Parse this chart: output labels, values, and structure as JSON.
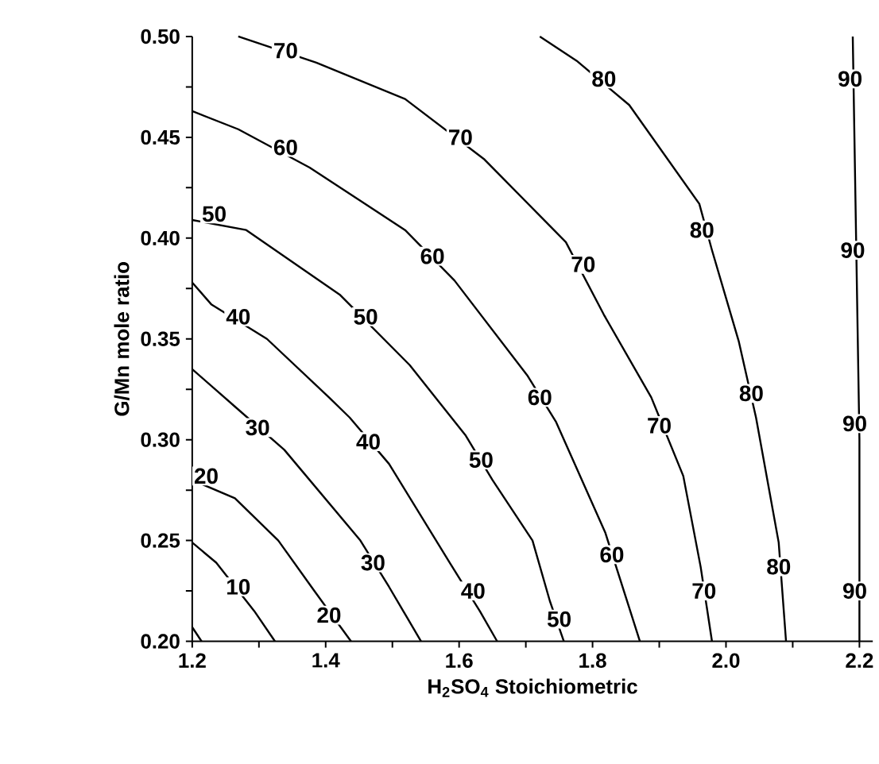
{
  "chart_data": {
    "type": "line",
    "xlabel": "H$_{2}$SO$_{4}$ Stoichiometric",
    "ylabel": "G/Mn mole ratio",
    "xlim": [
      1.2,
      2.22
    ],
    "ylim": [
      0.2,
      0.5
    ],
    "xticks": [
      1.2,
      {
        "value": 1.3,
        "label": null
      },
      1.4,
      {
        "value": 1.5,
        "label": null
      },
      1.6,
      {
        "value": 1.7,
        "label": null
      },
      1.8,
      {
        "value": 1.9,
        "label": null
      },
      {
        "value": 2.0,
        "label": "2.0"
      },
      {
        "value": 2.1,
        "label": null
      },
      2.2
    ],
    "yticks": [
      {
        "value": 0.2,
        "label": "0.20"
      },
      {
        "value": 0.225,
        "label": null
      },
      0.25,
      {
        "value": 0.275,
        "label": null
      },
      {
        "value": 0.3,
        "label": "0.30"
      },
      {
        "value": 0.325,
        "label": null
      },
      0.35,
      {
        "value": 0.375,
        "label": null
      },
      {
        "value": 0.4,
        "label": "0.40"
      },
      {
        "value": 0.425,
        "label": null
      },
      0.45,
      {
        "value": 0.475,
        "label": null
      },
      {
        "value": 0.5,
        "label": "0.50"
      }
    ],
    "series": [
      {
        "color": "#000000",
        "x": [
          2.19,
          2.195,
          2.2,
          2.2
        ],
        "values": [
          0.5,
          0.4,
          0.3,
          0.2
        ]
      },
      {
        "color": "#000000",
        "x": [
          1.721,
          1.776,
          1.855,
          1.96,
          1.979,
          2.019,
          2.045,
          2.079,
          2.09
        ],
        "values": [
          0.5,
          0.488,
          0.466,
          0.417,
          0.394,
          0.349,
          0.311,
          0.249,
          0.2
        ]
      },
      {
        "color": "#000000",
        "x": [
          1.269,
          1.386,
          1.519,
          1.638,
          1.76,
          1.817,
          1.888,
          1.936,
          1.962,
          1.979
        ],
        "values": [
          0.5,
          0.487,
          0.469,
          0.439,
          0.398,
          0.362,
          0.321,
          0.282,
          0.237,
          0.2
        ]
      },
      {
        "color": "#000000",
        "x": [
          1.2,
          1.269,
          1.376,
          1.519,
          1.593,
          1.702,
          1.745,
          1.819,
          1.871
        ],
        "values": [
          0.463,
          0.454,
          0.435,
          0.404,
          0.379,
          0.332,
          0.309,
          0.254,
          0.2
        ]
      },
      {
        "color": "#000000",
        "x": [
          1.2,
          1.281,
          1.421,
          1.526,
          1.61,
          1.65,
          1.71,
          1.736,
          1.757
        ],
        "values": [
          0.409,
          0.404,
          0.372,
          0.337,
          0.302,
          0.28,
          0.25,
          0.22,
          0.2
        ]
      },
      {
        "color": "#000000",
        "x": [
          1.2,
          1.229,
          1.312,
          1.405,
          1.436,
          1.495,
          1.586,
          1.631,
          1.657
        ],
        "values": [
          0.378,
          0.367,
          0.35,
          0.321,
          0.311,
          0.288,
          0.239,
          0.215,
          0.2
        ]
      },
      {
        "color": "#000000",
        "x": [
          1.2,
          1.262,
          1.338,
          1.452,
          1.495,
          1.543
        ],
        "values": [
          0.335,
          0.317,
          0.295,
          0.25,
          0.227,
          0.2
        ]
      },
      {
        "color": "#000000",
        "x": [
          1.2,
          1.264,
          1.329,
          1.383,
          1.438
        ],
        "values": [
          0.28,
          0.271,
          0.25,
          0.225,
          0.2
        ]
      },
      {
        "color": "#000000",
        "x": [
          1.2,
          1.236,
          1.293,
          1.324
        ],
        "values": [
          0.249,
          0.239,
          0.215,
          0.2
        ]
      },
      {
        "color": "#000000",
        "x": [
          1.2,
          1.214
        ],
        "values": [
          0.207,
          0.2
        ]
      }
    ],
    "annotations": [
      {
        "text": "90",
        "x": 2.186,
        "y": 0.479
      },
      {
        "text": "90",
        "x": 2.19,
        "y": 0.394
      },
      {
        "text": "90",
        "x": 2.193,
        "y": 0.308
      },
      {
        "text": "90",
        "x": 2.193,
        "y": 0.225
      },
      {
        "text": "80",
        "x": 1.817,
        "y": 0.479
      },
      {
        "text": "80",
        "x": 1.964,
        "y": 0.404
      },
      {
        "text": "80",
        "x": 2.038,
        "y": 0.323
      },
      {
        "text": "80",
        "x": 2.079,
        "y": 0.237
      },
      {
        "text": "70",
        "x": 1.34,
        "y": 0.493
      },
      {
        "text": "70",
        "x": 1.602,
        "y": 0.45
      },
      {
        "text": "70",
        "x": 1.786,
        "y": 0.387
      },
      {
        "text": "70",
        "x": 1.9,
        "y": 0.307
      },
      {
        "text": "70",
        "x": 1.967,
        "y": 0.225
      },
      {
        "text": "60",
        "x": 1.34,
        "y": 0.445
      },
      {
        "text": "60",
        "x": 1.56,
        "y": 0.391
      },
      {
        "text": "60",
        "x": 1.721,
        "y": 0.321
      },
      {
        "text": "60",
        "x": 1.829,
        "y": 0.243
      },
      {
        "text": "50",
        "x": 1.233,
        "y": 0.412
      },
      {
        "text": "50",
        "x": 1.46,
        "y": 0.361
      },
      {
        "text": "50",
        "x": 1.633,
        "y": 0.29
      },
      {
        "text": "50",
        "x": 1.75,
        "y": 0.211
      },
      {
        "text": "40",
        "x": 1.269,
        "y": 0.361
      },
      {
        "text": "40",
        "x": 1.464,
        "y": 0.299
      },
      {
        "text": "40",
        "x": 1.621,
        "y": 0.225
      },
      {
        "text": "30",
        "x": 1.298,
        "y": 0.306
      },
      {
        "text": "30",
        "x": 1.471,
        "y": 0.239
      },
      {
        "text": "20",
        "x": 1.221,
        "y": 0.282
      },
      {
        "text": "20",
        "x": 1.405,
        "y": 0.213
      },
      {
        "text": "10",
        "x": 1.269,
        "y": 0.227
      }
    ]
  }
}
